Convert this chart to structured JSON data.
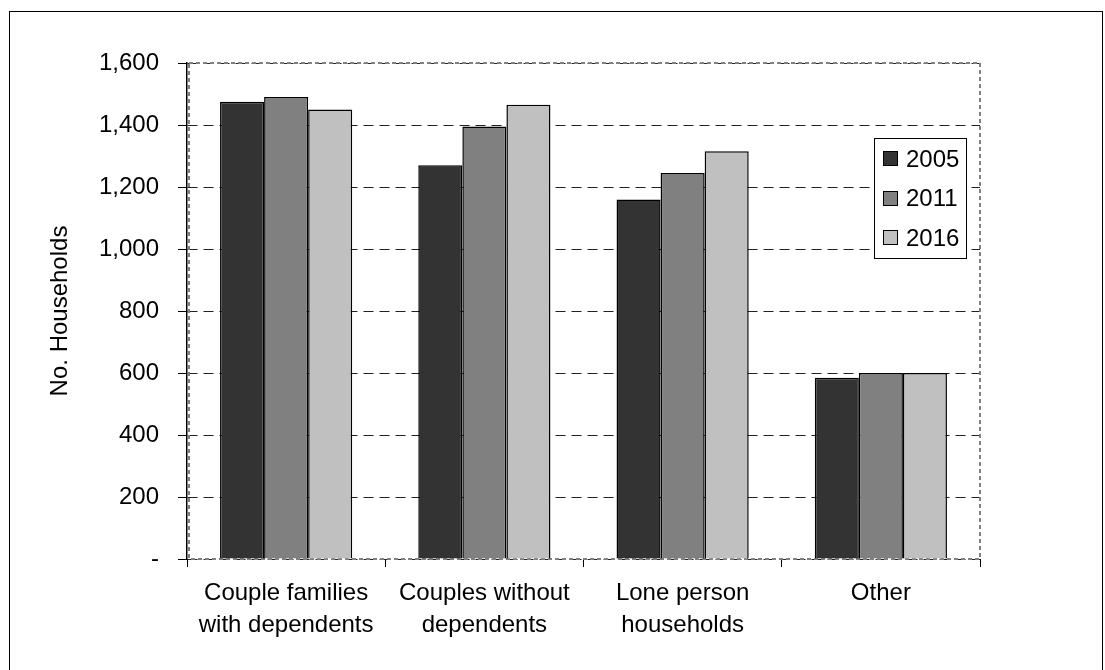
{
  "chart_data": {
    "type": "bar",
    "ylabel": "No. Households",
    "categories": [
      "Couple families with dependents",
      "Couples without dependents",
      "Lone person households",
      "Other"
    ],
    "series": [
      {
        "name": "2005",
        "color": "#333333",
        "values": [
          1475,
          1270,
          1160,
          585
        ]
      },
      {
        "name": "2011",
        "color": "#808080",
        "values": [
          1490,
          1395,
          1245,
          600
        ]
      },
      {
        "name": "2016",
        "color": "#c0c0c0",
        "values": [
          1450,
          1465,
          1315,
          600
        ]
      }
    ],
    "ylim": [
      0,
      1600
    ],
    "yticks": [
      {
        "value": 0,
        "label": "-"
      },
      200,
      400,
      600,
      800,
      {
        "value": 1000,
        "label": "1,000"
      },
      {
        "value": 1200,
        "label": "1,200"
      },
      {
        "value": 1400,
        "label": "1,400"
      },
      {
        "value": 1600,
        "label": "1,600"
      }
    ],
    "grid": "y",
    "legend": "right"
  }
}
